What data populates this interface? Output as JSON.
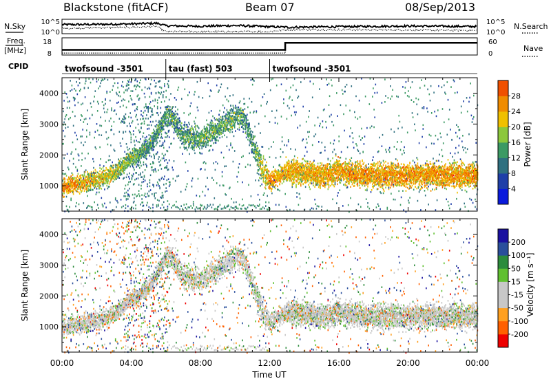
{
  "header": {
    "station": "Blackstone (fitACF)",
    "beam": "Beam 07",
    "date": "08/Sep/2013"
  },
  "left_labels": {
    "nsky": "N.Sky",
    "freq_line1": "Freq.",
    "freq_line2": "[MHz]",
    "cpid": "CPID"
  },
  "right_labels": {
    "nsearch": "N.Search",
    "nave": "Nave"
  },
  "nsky_ticks": [
    "10^5",
    "10^0"
  ],
  "nsearch_ticks": [
    "10^5",
    "10^0"
  ],
  "freq_ticks": [
    "18",
    "8"
  ],
  "nave_ticks": [
    "60",
    "0"
  ],
  "cpid_segments": [
    {
      "start_h": 0,
      "end_h": 6.0,
      "label": "twofsound -3501"
    },
    {
      "start_h": 6.0,
      "end_h": 12.0,
      "label": "tau (fast) 503"
    },
    {
      "start_h": 12.0,
      "end_h": 24.0,
      "label": "twofsound -3501"
    }
  ],
  "colors": {
    "power": [
      "#0a1adc",
      "#1f3fa8",
      "#2f7080",
      "#3c9a64",
      "#8cc83c",
      "#f0c000",
      "#f08c00",
      "#f05000",
      "#ff1400"
    ],
    "velocity": [
      "#ee0000",
      "#ff6000",
      "#ffa020",
      "#c8c8c8",
      "#c8c8c8",
      "#60c030",
      "#2c8c3c",
      "#2a4f9c",
      "#1a10a0"
    ]
  },
  "chart_data": [
    {
      "type": "line",
      "title": "N.Sky / N.Search",
      "x_unit": "hours UT",
      "xlim": [
        0,
        24
      ],
      "ylabel_left": "N.Sky",
      "ylabel_right": "N.Search",
      "left_ticks": [
        "10^0",
        "10^5"
      ],
      "right_ticks": [
        "10^0",
        "10^5"
      ],
      "series": [
        {
          "name": "N.Sky",
          "style": "solid",
          "x": [
            0,
            2,
            4,
            5.5,
            6,
            8,
            10,
            12,
            13,
            16,
            20,
            24
          ],
          "values": [
            3.3,
            3.4,
            3.6,
            3.9,
            2.8,
            2.6,
            2.9,
            2.4,
            2.2,
            2.4,
            2.7,
            2.5
          ]
        },
        {
          "name": "N.Search",
          "style": "dotted",
          "x": [
            0,
            2,
            4,
            5.5,
            6,
            8,
            10,
            12,
            13,
            16,
            20,
            24
          ],
          "values": [
            1.7,
            1.9,
            2.1,
            2.5,
            0.3,
            0.3,
            0.3,
            0.3,
            1.2,
            1.1,
            1.0,
            0.8
          ]
        }
      ]
    },
    {
      "type": "line",
      "title": "Freq. / Nave",
      "x_unit": "hours UT",
      "xlim": [
        0,
        24
      ],
      "ylabel_left": "Freq. [MHz]",
      "ylabel_right": "Nave",
      "left_ticks": [
        "8",
        "18"
      ],
      "right_ticks": [
        "0",
        "60"
      ],
      "series": [
        {
          "name": "Freq.",
          "style": "solid",
          "x": [
            0,
            12.9,
            12.9,
            24
          ],
          "values": [
            10.6,
            10.6,
            15.5,
            15.5
          ]
        },
        {
          "name": "Nave",
          "style": "dotted",
          "x": [
            0,
            12.9,
            12.9,
            24
          ],
          "values": [
            8,
            8,
            52,
            52
          ]
        }
      ]
    },
    {
      "type": "heatmap",
      "title": "Power",
      "xlabel": "",
      "ylabel": "Slant Range [km]",
      "xlim": [
        0,
        24
      ],
      "ylim": [
        180,
        4500
      ],
      "y_ticks": [
        1000,
        2000,
        3000,
        4000
      ],
      "colorbar_label": "Power [dB]",
      "colorbar_ticks": [
        "4",
        "8",
        "12",
        "16",
        "20",
        "24",
        "28"
      ],
      "band_center": {
        "x": [
          0,
          1,
          2,
          3,
          4,
          5,
          6,
          6.3,
          7,
          8,
          9,
          10,
          10.5,
          11,
          11.5,
          12,
          13,
          14,
          15,
          16,
          17,
          18,
          19,
          20,
          21,
          22,
          23,
          24
        ],
        "values": [
          1000,
          1100,
          1250,
          1450,
          1900,
          2300,
          3300,
          3300,
          2600,
          2550,
          2900,
          3300,
          3200,
          2400,
          1600,
          1200,
          1500,
          1450,
          1350,
          1500,
          1400,
          1350,
          1400,
          1350,
          1400,
          1350,
          1350,
          1400
        ]
      },
      "band_power_db": {
        "x": [
          0,
          3,
          5,
          6,
          8,
          10,
          11,
          12,
          13,
          18,
          24
        ],
        "values": [
          25,
          18,
          12,
          12,
          14,
          13,
          12,
          24,
          22,
          24,
          24
        ]
      }
    },
    {
      "type": "heatmap",
      "title": "Velocity",
      "xlabel": "Time UT",
      "ylabel": "Slant Range [km]",
      "xlim": [
        0,
        24
      ],
      "ylim": [
        180,
        4500
      ],
      "x_ticks": [
        "00:00",
        "04:00",
        "08:00",
        "12:00",
        "16:00",
        "20:00",
        "00:00"
      ],
      "y_ticks": [
        1000,
        2000,
        3000,
        4000
      ],
      "colorbar_label": "Velocity [m s⁻¹]",
      "colorbar_ticks": [
        "-200",
        "-100",
        "-50",
        "-15",
        "15",
        "50",
        "100",
        "200"
      ]
    }
  ],
  "axes": {
    "xtick_labels": [
      "00:00",
      "04:00",
      "08:00",
      "12:00",
      "16:00",
      "20:00",
      "00:00"
    ],
    "ytick_labels": [
      "1000",
      "2000",
      "3000",
      "4000"
    ],
    "xlabel": "Time UT",
    "ylabel_power": "Slant Range [km]",
    "ylabel_vel": "Slant Range [km]",
    "power_cbar_label": "Power [dB]",
    "vel_cbar_label": "Velocity [m s⁻¹]",
    "power_cbar_ticks": [
      "4",
      "8",
      "12",
      "16",
      "20",
      "24",
      "28"
    ],
    "vel_cbar_ticks": [
      "-200",
      "-100",
      "-50",
      "-15",
      "15",
      "50",
      "100",
      "200"
    ]
  }
}
